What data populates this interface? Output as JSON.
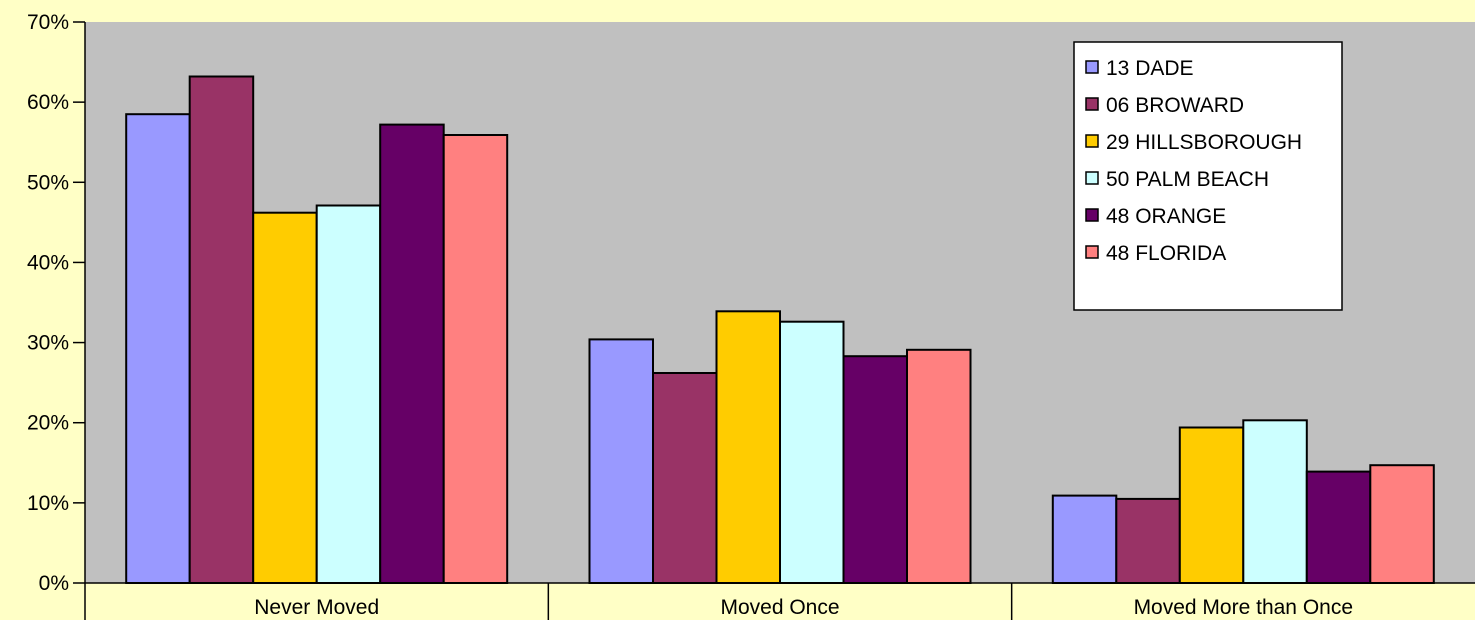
{
  "chart_data": {
    "type": "bar",
    "categories": [
      "Never Moved",
      "Moved Once",
      "Moved More than Once"
    ],
    "series": [
      {
        "name": "13 DADE",
        "color": "#9999FF",
        "values": [
          58.5,
          30.4,
          10.9
        ]
      },
      {
        "name": "06 BROWARD",
        "color": "#993366",
        "values": [
          63.2,
          26.2,
          10.5
        ]
      },
      {
        "name": "29 HILLSBOROUGH",
        "color": "#FFCC00",
        "values": [
          46.2,
          33.9,
          19.4
        ]
      },
      {
        "name": "50 PALM BEACH",
        "color": "#CCFFFF",
        "values": [
          47.1,
          32.6,
          20.3
        ]
      },
      {
        "name": "48 ORANGE",
        "color": "#660066",
        "values": [
          57.2,
          28.3,
          13.9
        ]
      },
      {
        "name": "48 FLORIDA",
        "color": "#FF8080",
        "values": [
          55.9,
          29.1,
          14.7
        ]
      }
    ],
    "y_ticks": [
      "0%",
      "10%",
      "20%",
      "30%",
      "40%",
      "50%",
      "60%",
      "70%"
    ],
    "ylim": [
      0,
      70
    ],
    "y_unit": "%",
    "grid": false,
    "legend_position": "top-right",
    "plot_background": "#C0C0C0",
    "page_background": "#FFFFC6"
  }
}
